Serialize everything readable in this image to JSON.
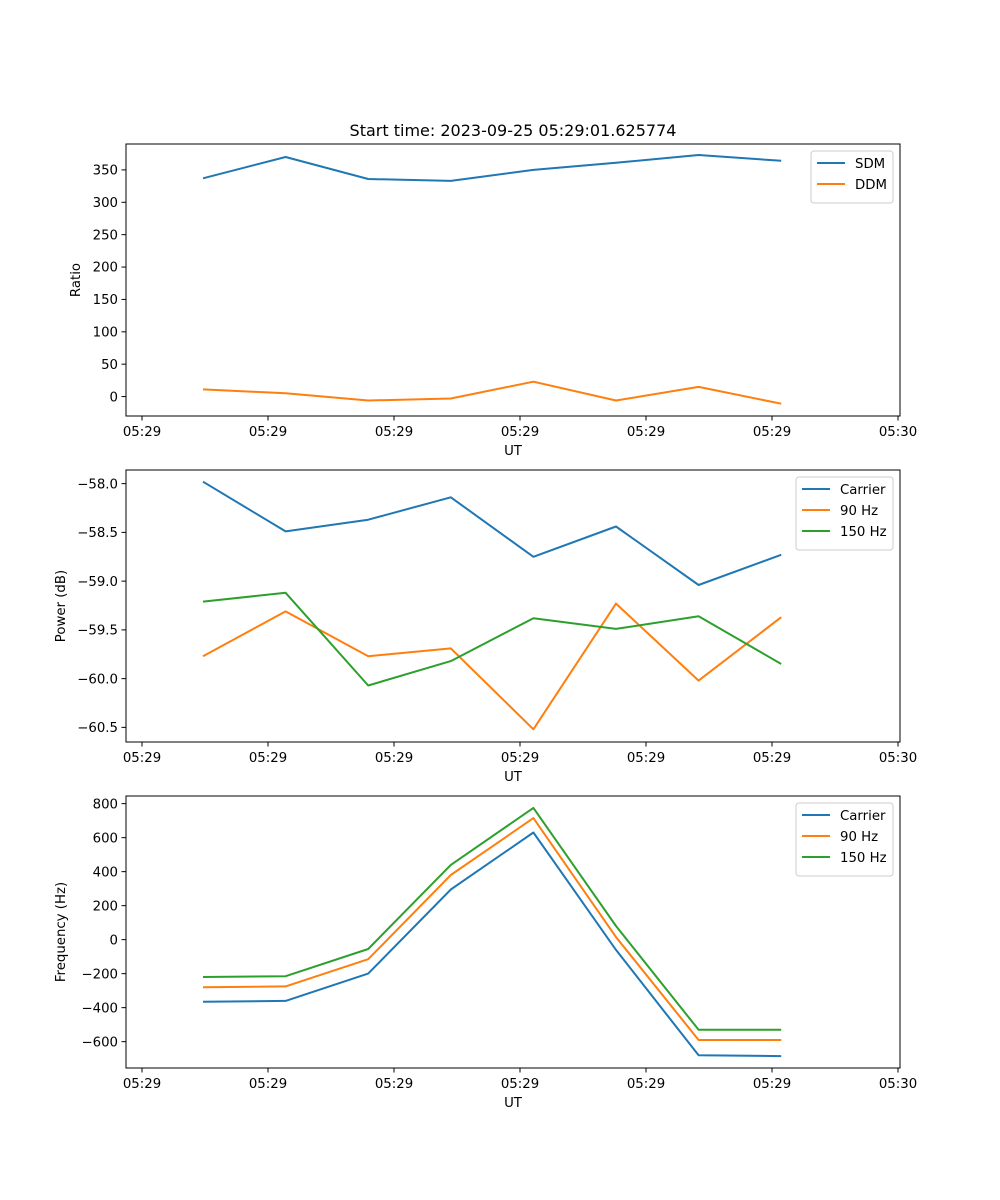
{
  "figure_title": "Start time: 2023-09-25 05:29:01.625774",
  "chart_data": [
    {
      "type": "line",
      "title": "Start time: 2023-09-25 05:29:01.625774",
      "xlabel": "UT",
      "ylabel": "Ratio",
      "x_tick_labels": [
        "05:29",
        "05:29",
        "05:29",
        "05:29",
        "05:29",
        "05:29",
        "05:30"
      ],
      "y_ticks": [
        0,
        50,
        100,
        150,
        200,
        250,
        300,
        350
      ],
      "y_tick_labels": [
        "0",
        "50",
        "100",
        "150",
        "200",
        "250",
        "300",
        "350"
      ],
      "ylim": [
        -30,
        390
      ],
      "grid": false,
      "legend_position": "top-right",
      "series": [
        {
          "name": "SDM",
          "color": "#1f77b4",
          "values": [
            337,
            370,
            336,
            333,
            350,
            361,
            373,
            364
          ]
        },
        {
          "name": "DDM",
          "color": "#ff7f0e",
          "values": [
            11,
            5,
            -6,
            -3,
            23,
            -6,
            15,
            -11
          ]
        }
      ]
    },
    {
      "type": "line",
      "title": "",
      "xlabel": "UT",
      "ylabel": "Power (dB)",
      "x_tick_labels": [
        "05:29",
        "05:29",
        "05:29",
        "05:29",
        "05:29",
        "05:29",
        "05:30"
      ],
      "y_ticks": [
        -60.5,
        -60.0,
        -59.5,
        -59.0,
        -58.5,
        -58.0
      ],
      "y_tick_labels": [
        "−60.5",
        "−60.0",
        "−59.5",
        "−59.0",
        "−58.5",
        "−58.0"
      ],
      "ylim": [
        -60.65,
        -57.86
      ],
      "grid": false,
      "legend_position": "top-right",
      "series": [
        {
          "name": "Carrier",
          "color": "#1f77b4",
          "values": [
            -57.98,
            -58.49,
            -58.37,
            -58.14,
            -58.75,
            -58.44,
            -59.04,
            -58.73
          ]
        },
        {
          "name": "90 Hz",
          "color": "#ff7f0e",
          "values": [
            -59.77,
            -59.31,
            -59.77,
            -59.69,
            -60.52,
            -59.23,
            -60.02,
            -59.37
          ]
        },
        {
          "name": "150 Hz",
          "color": "#2ca02c",
          "values": [
            -59.21,
            -59.12,
            -60.07,
            -59.82,
            -59.38,
            -59.49,
            -59.36,
            -59.85
          ]
        }
      ]
    },
    {
      "type": "line",
      "title": "",
      "xlabel": "UT",
      "ylabel": "Frequency (Hz)",
      "x_tick_labels": [
        "05:29",
        "05:29",
        "05:29",
        "05:29",
        "05:29",
        "05:29",
        "05:30"
      ],
      "y_ticks": [
        -600,
        -400,
        -200,
        0,
        200,
        400,
        600,
        800
      ],
      "y_tick_labels": [
        "−600",
        "−400",
        "−200",
        "0",
        "200",
        "400",
        "600",
        "800"
      ],
      "ylim": [
        -755,
        845
      ],
      "grid": false,
      "legend_position": "top-right",
      "series": [
        {
          "name": "Carrier",
          "color": "#1f77b4",
          "values": [
            -365,
            -360,
            -200,
            295,
            630,
            -60,
            -680,
            -685
          ]
        },
        {
          "name": "90 Hz",
          "color": "#ff7f0e",
          "values": [
            -280,
            -275,
            -115,
            380,
            715,
            15,
            -590,
            -590
          ]
        },
        {
          "name": "150 Hz",
          "color": "#2ca02c",
          "values": [
            -220,
            -215,
            -55,
            440,
            775,
            80,
            -530,
            -530
          ]
        }
      ]
    }
  ]
}
